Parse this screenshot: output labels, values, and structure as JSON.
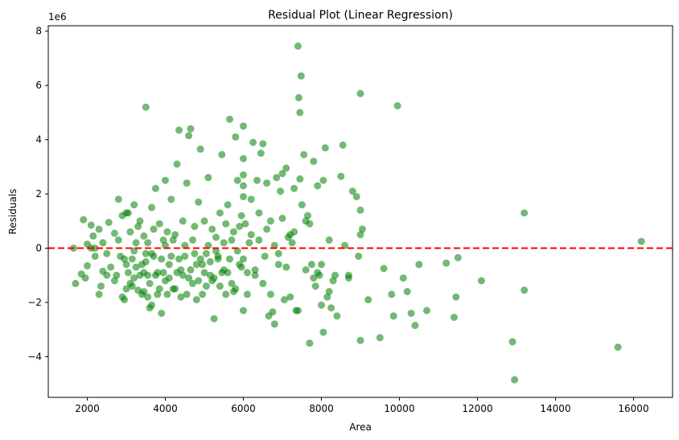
{
  "chart_data": {
    "type": "scatter",
    "title": "Residual Plot (Linear Regression)",
    "xlabel": "Area",
    "ylabel": "Residuals",
    "y_offset_label": "1e6",
    "xlim": [
      1000,
      17000
    ],
    "ylim": [
      -5500000,
      8200000
    ],
    "x_ticks": [
      2000,
      4000,
      6000,
      8000,
      10000,
      12000,
      14000,
      16000
    ],
    "y_ticks": [
      -4000000,
      -2000000,
      0,
      2000000,
      4000000,
      6000000,
      8000000
    ],
    "y_tick_labels": [
      "−4",
      "−2",
      "0",
      "2",
      "4",
      "6",
      "8"
    ],
    "grid": false,
    "reference_line": {
      "y": 0,
      "style": "dashed",
      "color": "#ff0000"
    },
    "point_color": "#008000",
    "point_alpha": 0.55,
    "series": [
      {
        "points": [
          [
            1650,
            0
          ],
          [
            1700,
            -1300000
          ],
          [
            1850,
            -950000
          ],
          [
            1900,
            1050000
          ],
          [
            1950,
            -1100000
          ],
          [
            2000,
            150000
          ],
          [
            2000,
            -650000
          ],
          [
            2100,
            850000
          ],
          [
            2150,
            450000
          ],
          [
            2200,
            -300000
          ],
          [
            2200,
            0
          ],
          [
            2300,
            700000
          ],
          [
            2350,
            -1400000
          ],
          [
            2400,
            -850000
          ],
          [
            2400,
            200000
          ],
          [
            2500,
            -200000
          ],
          [
            2550,
            950000
          ],
          [
            2600,
            -700000
          ],
          [
            2700,
            550000
          ],
          [
            2750,
            -1000000
          ],
          [
            2800,
            1800000
          ],
          [
            2850,
            -300000
          ],
          [
            2900,
            1200000
          ],
          [
            2950,
            -1900000
          ],
          [
            3000,
            -1500000
          ],
          [
            3000,
            1300000
          ],
          [
            3050,
            -900000
          ],
          [
            3100,
            600000
          ],
          [
            3150,
            -400000
          ],
          [
            3200,
            -1100000
          ],
          [
            3200,
            1600000
          ],
          [
            3250,
            200000
          ],
          [
            3300,
            -1550000
          ],
          [
            3350,
            1000000
          ],
          [
            3400,
            -600000
          ],
          [
            3450,
            450000
          ],
          [
            3500,
            5200000
          ],
          [
            3500,
            -200000
          ],
          [
            3550,
            -1000000
          ],
          [
            3600,
            -2200000
          ],
          [
            3650,
            1500000
          ],
          [
            3700,
            -300000
          ],
          [
            3750,
            2200000
          ],
          [
            3800,
            -1700000
          ],
          [
            3850,
            900000
          ],
          [
            3900,
            -2400000
          ],
          [
            3950,
            300000
          ],
          [
            4000,
            2500000
          ],
          [
            4000,
            -1200000
          ],
          [
            4050,
            600000
          ],
          [
            4100,
            -600000
          ],
          [
            4150,
            1800000
          ],
          [
            4200,
            -1500000
          ],
          [
            4250,
            500000
          ],
          [
            4300,
            3100000
          ],
          [
            4350,
            4350000
          ],
          [
            4400,
            -800000
          ],
          [
            4450,
            1000000
          ],
          [
            4500,
            -300000
          ],
          [
            4550,
            2400000
          ],
          [
            4600,
            4150000
          ],
          [
            4650,
            4400000
          ],
          [
            4700,
            -1300000
          ],
          [
            4750,
            800000
          ],
          [
            4800,
            -600000
          ],
          [
            4850,
            1700000
          ],
          [
            4900,
            3650000
          ],
          [
            4950,
            -1700000
          ],
          [
            5000,
            1000000
          ],
          [
            5050,
            -200000
          ],
          [
            5100,
            2600000
          ],
          [
            5150,
            -1000000
          ],
          [
            5200,
            700000
          ],
          [
            5250,
            -2600000
          ],
          [
            5300,
            400000
          ],
          [
            5350,
            -400000
          ],
          [
            5400,
            1300000
          ],
          [
            5450,
            3450000
          ],
          [
            5500,
            -800000
          ],
          [
            5550,
            900000
          ],
          [
            5600,
            1600000
          ],
          [
            5650,
            4750000
          ],
          [
            5700,
            -1300000
          ],
          [
            5750,
            600000
          ],
          [
            5800,
            4100000
          ],
          [
            5850,
            2500000
          ],
          [
            5900,
            -600000
          ],
          [
            5950,
            1200000
          ],
          [
            6000,
            4500000
          ],
          [
            6000,
            2300000
          ],
          [
            6000,
            1900000
          ],
          [
            6000,
            2700000
          ],
          [
            6000,
            3300000
          ],
          [
            6000,
            -2300000
          ],
          [
            6000,
            -400000
          ],
          [
            6050,
            900000
          ],
          [
            6100,
            -1700000
          ],
          [
            6150,
            200000
          ],
          [
            6200,
            1800000
          ],
          [
            6250,
            3900000
          ],
          [
            6300,
            -800000
          ],
          [
            6350,
            2500000
          ],
          [
            6400,
            1300000
          ],
          [
            6450,
            3500000
          ],
          [
            6500,
            3850000
          ],
          [
            6550,
            -300000
          ],
          [
            6600,
            2400000
          ],
          [
            6650,
            -2500000
          ],
          [
            6700,
            1000000
          ],
          [
            6750,
            -2350000
          ],
          [
            6800,
            -2800000
          ],
          [
            6850,
            2600000
          ],
          [
            6900,
            -200000
          ],
          [
            6950,
            2100000
          ],
          [
            7000,
            2750000
          ],
          [
            7050,
            -1900000
          ],
          [
            7100,
            2950000
          ],
          [
            7150,
            400000
          ],
          [
            7200,
            -1800000
          ],
          [
            7250,
            200000
          ],
          [
            7300,
            2200000
          ],
          [
            7350,
            -2300000
          ],
          [
            7400,
            7450000
          ],
          [
            7420,
            5550000
          ],
          [
            7450,
            5000000
          ],
          [
            7480,
            6350000
          ],
          [
            7500,
            1600000
          ],
          [
            7550,
            3450000
          ],
          [
            7600,
            -800000
          ],
          [
            7650,
            1200000
          ],
          [
            7700,
            -3500000
          ],
          [
            7750,
            -600000
          ],
          [
            7800,
            3200000
          ],
          [
            7850,
            -1400000
          ],
          [
            7900,
            2300000
          ],
          [
            7950,
            -1000000
          ],
          [
            8000,
            -600000
          ],
          [
            8050,
            2500000
          ],
          [
            8050,
            -3100000
          ],
          [
            8100,
            3700000
          ],
          [
            8150,
            -1800000
          ],
          [
            8200,
            300000
          ],
          [
            8250,
            -2200000
          ],
          [
            8300,
            -1200000
          ],
          [
            8350,
            -1000000
          ],
          [
            8400,
            -2500000
          ],
          [
            8500,
            2650000
          ],
          [
            8550,
            3800000
          ],
          [
            8600,
            100000
          ],
          [
            8700,
            -1100000
          ],
          [
            8800,
            2100000
          ],
          [
            8900,
            1900000
          ],
          [
            8950,
            -300000
          ],
          [
            9000,
            5700000
          ],
          [
            9000,
            -3400000
          ],
          [
            9050,
            700000
          ],
          [
            9200,
            -1900000
          ],
          [
            9500,
            -3300000
          ],
          [
            9600,
            -750000
          ],
          [
            9800,
            -1700000
          ],
          [
            9850,
            -2500000
          ],
          [
            9950,
            5250000
          ],
          [
            10100,
            -1100000
          ],
          [
            10200,
            -1600000
          ],
          [
            10300,
            -2400000
          ],
          [
            10400,
            -2850000
          ],
          [
            10500,
            -600000
          ],
          [
            10700,
            -2300000
          ],
          [
            11200,
            -550000
          ],
          [
            11400,
            -2550000
          ],
          [
            11450,
            -1800000
          ],
          [
            11500,
            -350000
          ],
          [
            12100,
            -1200000
          ],
          [
            12900,
            -3450000
          ],
          [
            12950,
            -4850000
          ],
          [
            13200,
            -1550000
          ],
          [
            13200,
            1300000
          ],
          [
            15600,
            -3650000
          ],
          [
            16200,
            250000
          ],
          [
            3000,
            -600000
          ],
          [
            3100,
            -1300000
          ],
          [
            3200,
            -100000
          ],
          [
            3300,
            800000
          ],
          [
            3400,
            -1700000
          ],
          [
            3450,
            -900000
          ],
          [
            3500,
            -500000
          ],
          [
            3550,
            200000
          ],
          [
            3600,
            -1300000
          ],
          [
            3650,
            -200000
          ],
          [
            3700,
            700000
          ],
          [
            3800,
            -900000
          ],
          [
            3900,
            -400000
          ],
          [
            4000,
            100000
          ],
          [
            4100,
            -1100000
          ],
          [
            4200,
            300000
          ],
          [
            4300,
            -900000
          ],
          [
            4400,
            -1800000
          ],
          [
            4500,
            100000
          ],
          [
            4600,
            -1100000
          ],
          [
            4700,
            300000
          ],
          [
            4800,
            -1900000
          ],
          [
            4900,
            -400000
          ],
          [
            5000,
            -900000
          ],
          [
            5100,
            100000
          ],
          [
            5200,
            -1200000
          ],
          [
            5300,
            -100000
          ],
          [
            5400,
            -1400000
          ],
          [
            5500,
            200000
          ],
          [
            5600,
            -900000
          ],
          [
            5700,
            300000
          ],
          [
            5800,
            -1500000
          ],
          [
            5900,
            800000
          ],
          [
            6100,
            -900000
          ],
          [
            6200,
            500000
          ],
          [
            6300,
            -1000000
          ],
          [
            6400,
            300000
          ],
          [
            6500,
            -1300000
          ],
          [
            6600,
            700000
          ],
          [
            6700,
            -1700000
          ],
          [
            6800,
            100000
          ],
          [
            6900,
            -600000
          ],
          [
            7000,
            1100000
          ],
          [
            7100,
            -700000
          ],
          [
            7200,
            500000
          ],
          [
            7300,
            600000
          ],
          [
            7400,
            -2300000
          ],
          [
            7450,
            2550000
          ],
          [
            7600,
            1000000
          ],
          [
            7700,
            900000
          ],
          [
            7800,
            -1100000
          ],
          [
            7900,
            -900000
          ],
          [
            8000,
            -2100000
          ],
          [
            8200,
            -1600000
          ],
          [
            8700,
            -1000000
          ],
          [
            9000,
            1400000
          ],
          [
            9000,
            500000
          ],
          [
            2100,
            0
          ],
          [
            2300,
            -1700000
          ],
          [
            2500,
            -1000000
          ],
          [
            2700,
            -1200000
          ],
          [
            2800,
            300000
          ],
          [
            2900,
            -1800000
          ],
          [
            2950,
            -400000
          ],
          [
            3050,
            1300000
          ],
          [
            3150,
            -1400000
          ],
          [
            3250,
            -700000
          ],
          [
            3350,
            -1000000
          ],
          [
            3450,
            -1600000
          ],
          [
            3550,
            -1800000
          ],
          [
            3650,
            -2100000
          ],
          [
            3750,
            -1000000
          ],
          [
            3850,
            -1500000
          ],
          [
            3950,
            -900000
          ],
          [
            4050,
            -1700000
          ],
          [
            4150,
            -300000
          ],
          [
            4250,
            -1500000
          ],
          [
            4350,
            -400000
          ],
          [
            4450,
            -1000000
          ],
          [
            4550,
            -1700000
          ],
          [
            4650,
            -800000
          ],
          [
            4750,
            -200000
          ],
          [
            4850,
            -1200000
          ],
          [
            4950,
            -600000
          ],
          [
            5050,
            -1400000
          ],
          [
            5150,
            -500000
          ],
          [
            5250,
            -1100000
          ],
          [
            5350,
            -300000
          ],
          [
            5450,
            -900000
          ],
          [
            5550,
            -1700000
          ],
          [
            5650,
            -400000
          ],
          [
            5750,
            -1600000
          ],
          [
            5850,
            -100000
          ],
          [
            5950,
            -700000
          ]
        ]
      }
    ]
  }
}
